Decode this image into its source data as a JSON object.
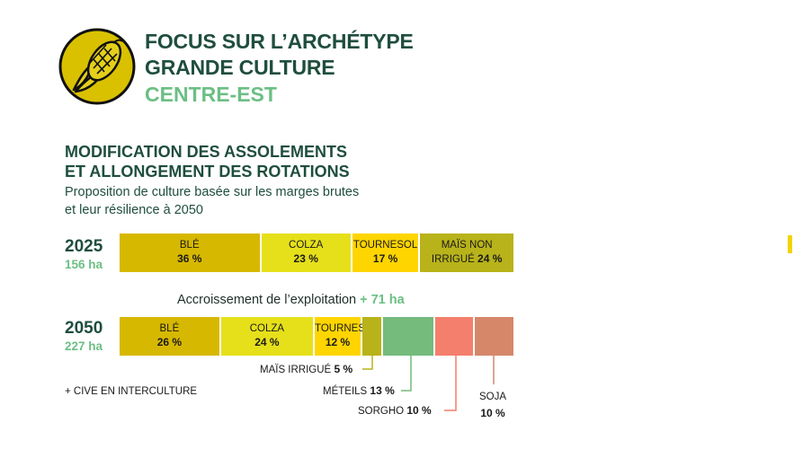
{
  "header": {
    "title_line1": "FOCUS SUR L’ARCHÉTYPE",
    "title_line2": "GRANDE CULTURE",
    "region": "CENTRE-EST",
    "icon": "corn-icon"
  },
  "section": {
    "title_line1": "MODIFICATION DES ASSOLEMENTS",
    "title_line2": "ET ALLONGEMENT DES ROTATIONS",
    "subtitle_line1": "Proposition de culture basée sur  les marges brutes",
    "subtitle_line2": "et leur résilience à 2050"
  },
  "chart_data": {
    "type": "stacked-bar",
    "unit": "%",
    "rows": [
      {
        "year": "2025",
        "area": "156 ha",
        "segments": [
          {
            "crop": "BLÉ",
            "percent": 36,
            "value_label": "36 %",
            "color": "#d7b800"
          },
          {
            "crop": "COLZA",
            "percent": 23,
            "value_label": "23 %",
            "color": "#e6e01b"
          },
          {
            "crop": "TOURNESOL",
            "percent": 17,
            "value_label": "17 %",
            "color": "#ffd500"
          },
          {
            "crop": "MAÏS NON IRRIGUÉ",
            "percent": 24,
            "value_label": "24 %",
            "color": "#b8b31a"
          }
        ]
      },
      {
        "year": "2050",
        "area": "227 ha",
        "segments": [
          {
            "crop": "BLÉ",
            "percent": 26,
            "value_label": "26 %",
            "color": "#d7b800"
          },
          {
            "crop": "COLZA",
            "percent": 24,
            "value_label": "24 %",
            "color": "#e6e01b"
          },
          {
            "crop": "TOURNESOL",
            "percent": 12,
            "value_label": "12 %",
            "color": "#ffd500"
          },
          {
            "crop": "MAÏS IRRIGUÉ",
            "percent": 5,
            "value_label": "5 %",
            "color": "#b8b31a"
          },
          {
            "crop": "MÉTEILS",
            "percent": 13,
            "value_label": "13 %",
            "color": "#74bb7c"
          },
          {
            "crop": "SORGHO",
            "percent": 10,
            "value_label": "10 %",
            "color": "#f47f6c"
          },
          {
            "crop": "SOJA",
            "percent": 10,
            "value_label": "10 %",
            "color": "#d6876a"
          }
        ]
      }
    ],
    "growth_label": "Accroissement de l’exploitation",
    "growth_value": "+ 71 ha",
    "note": "+ CIVE EN INTERCULTURE"
  }
}
